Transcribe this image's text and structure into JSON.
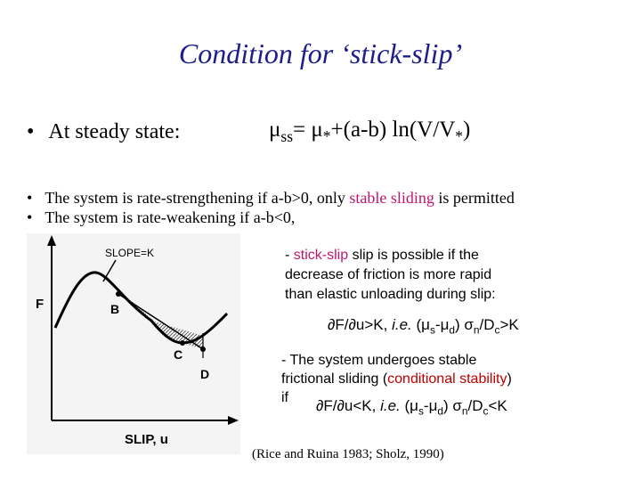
{
  "title": "Condition for ‘stick-slip’",
  "steady_state": {
    "bullet": "•",
    "label": "At steady state:",
    "formula": [
      "μ",
      "ss",
      "= μ",
      "*",
      "+(a-b) ln(V/V",
      "*",
      ")"
    ]
  },
  "bullets": [
    {
      "bullet": "•",
      "parts": [
        "The system is rate-strengthening if a-b>0, only ",
        "stable sliding",
        " is permitted"
      ]
    },
    {
      "bullet": "•",
      "parts": [
        "The system is rate-weakening if a-b<0,"
      ]
    }
  ],
  "stick_slip": {
    "lines": [
      [
        "- ",
        "stick-slip",
        " slip is possible if the"
      ],
      [
        "decrease of friction is more rapid"
      ],
      [
        "than elastic unloading during slip:"
      ]
    ],
    "condition": [
      "∂F/∂u>K, ",
      "i.e.",
      " (μ",
      "s",
      "-μ",
      "d",
      ") σ",
      "n",
      "/D",
      "c",
      ">K"
    ]
  },
  "stable": {
    "lines": [
      [
        "- The system undergoes stable"
      ],
      [
        "frictional sliding (",
        "conditional stability",
        ")"
      ],
      [
        "if"
      ]
    ],
    "condition": [
      "∂F/∂u<K, ",
      "i.e.",
      " (μ",
      "s",
      "-μ",
      "d",
      ") σ",
      "n",
      "/D",
      "c",
      "<K"
    ]
  },
  "figure": {
    "slope_label": "SLOPE=K",
    "y_label": "F",
    "x_label": "SLIP, u",
    "points": [
      "B",
      "C",
      "D"
    ]
  },
  "citation": "(Rice and Ruina 1983; Sholz, 1990)"
}
